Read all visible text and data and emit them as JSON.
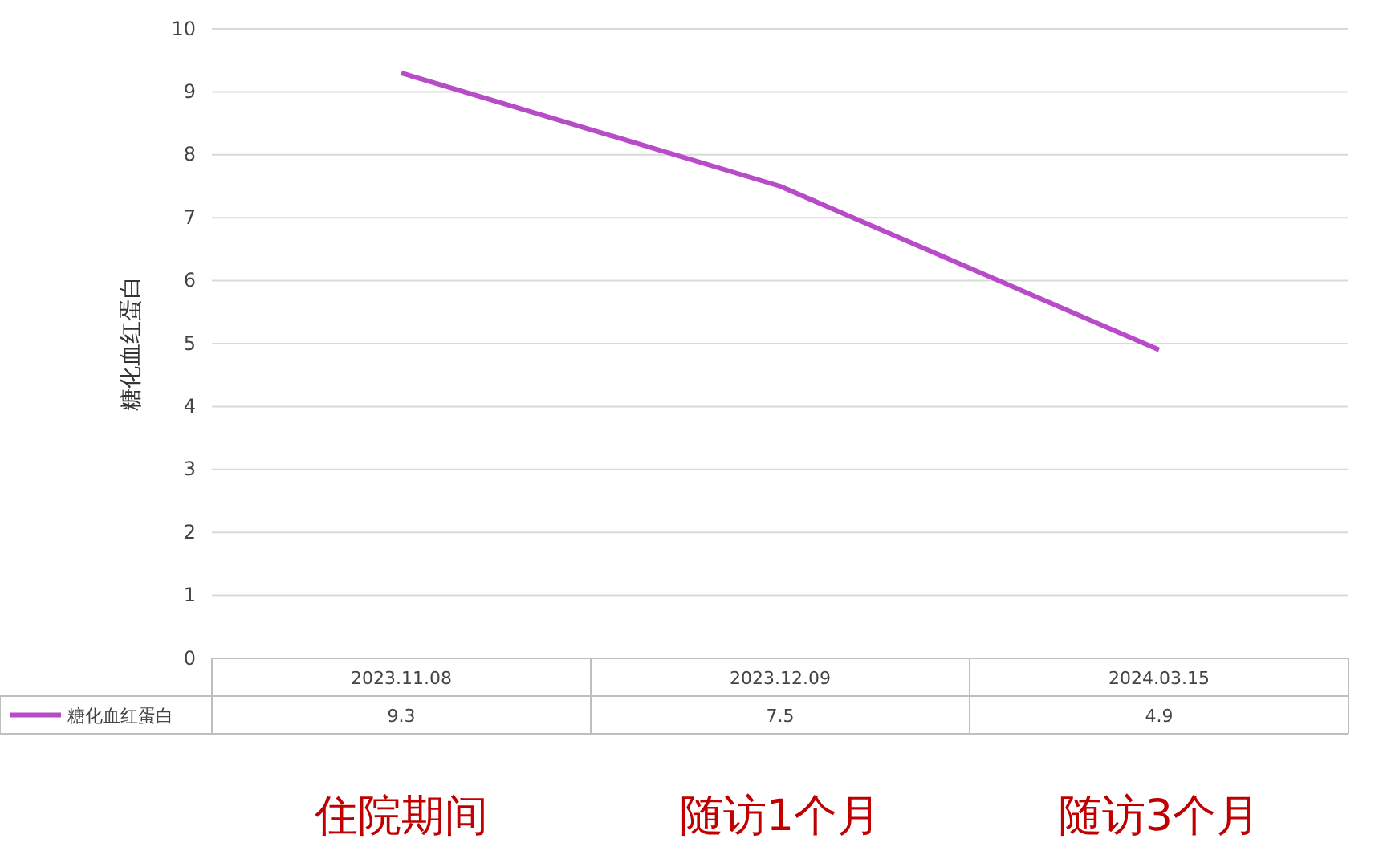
{
  "chart_data": {
    "type": "line",
    "categories": [
      "2023.11.08",
      "2023.12.09",
      "2024.03.15"
    ],
    "series": [
      {
        "name": "糖化血红蛋白",
        "color": "#b84cc8",
        "values": [
          9.3,
          7.5,
          4.9
        ]
      }
    ],
    "ylabel": "糖化血红蛋白",
    "ylim": [
      0,
      10
    ],
    "yticks": [
      0,
      1,
      2,
      3,
      4,
      5,
      6,
      7,
      8,
      9,
      10
    ],
    "grid": "y",
    "data_labels": true,
    "legend": "bottom",
    "line_style": "solid",
    "marker": "none",
    "annotations": [
      "住院期间",
      "随访1个月",
      "随访3个月"
    ]
  }
}
